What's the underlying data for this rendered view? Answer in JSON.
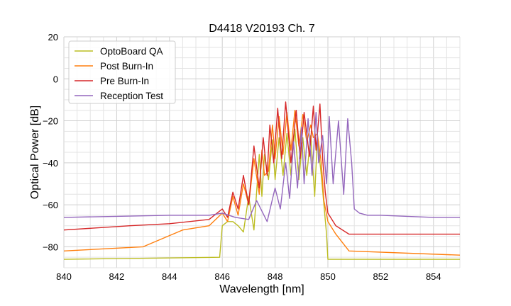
{
  "chart_data": {
    "type": "line",
    "title": "D4418 V20193 Ch. 7",
    "xlabel": "Wavelength [nm]",
    "ylabel": "Optical Power [dB]",
    "xlim": [
      840,
      855
    ],
    "ylim": [
      -90,
      20
    ],
    "x_ticks": [
      840,
      842,
      844,
      846,
      848,
      850,
      852,
      854
    ],
    "x_tick_labels": [
      "840",
      "842",
      "844",
      "846",
      "848",
      "850",
      "852",
      "854"
    ],
    "y_ticks": [
      20,
      0,
      -20,
      -40,
      -60,
      -80
    ],
    "y_tick_labels": [
      "20",
      "0",
      "−20",
      "−40",
      "−60",
      "−80"
    ],
    "grid": true,
    "legend_position": "top-left",
    "series": [
      {
        "name": "OptoBoard QA",
        "color": "#bcbd22",
        "x": [
          840,
          845.9,
          846.0,
          846.2,
          846.4,
          846.6,
          846.8,
          847.0,
          847.2,
          847.4,
          847.5,
          847.6,
          847.75,
          847.9,
          848.0,
          848.15,
          848.3,
          848.45,
          848.6,
          848.75,
          848.9,
          849.05,
          849.2,
          849.35,
          849.5,
          849.6,
          849.75,
          849.85,
          849.95,
          850.0,
          855
        ],
        "y": [
          -86,
          -85,
          -70,
          -68,
          -68,
          -70,
          -73,
          -56,
          -72,
          -36,
          -56,
          -36,
          -48,
          -29,
          -48,
          -28,
          -46,
          -26,
          -46,
          -24,
          -48,
          -28,
          -46,
          -27,
          -56,
          -28,
          -46,
          -60,
          -74,
          -86,
          -86
        ]
      },
      {
        "name": "Post Burn-In",
        "color": "#ff7f0e",
        "x": [
          840,
          843.0,
          844.5,
          845.5,
          846.0,
          846.2,
          846.4,
          846.6,
          846.8,
          847.0,
          847.2,
          847.4,
          847.5,
          847.6,
          847.75,
          847.9,
          848.0,
          848.15,
          848.3,
          848.45,
          848.6,
          848.75,
          848.9,
          849.05,
          849.2,
          849.35,
          849.45,
          849.6,
          849.75,
          849.85,
          850.0,
          850.3,
          850.8,
          855
        ],
        "y": [
          -82,
          -80,
          -72,
          -70,
          -64,
          -68,
          -56,
          -65,
          -50,
          -60,
          -38,
          -55,
          -34,
          -46,
          -44,
          -22,
          -38,
          -18,
          -36,
          -16,
          -34,
          -15,
          -32,
          -17,
          -30,
          -22,
          -28,
          -26,
          -40,
          -58,
          -68,
          -74,
          -82,
          -84
        ]
      },
      {
        "name": "Pre Burn-In",
        "color": "#d62728",
        "x": [
          840,
          842.5,
          844.0,
          845.5,
          846.0,
          846.2,
          846.4,
          846.6,
          846.8,
          847.0,
          847.2,
          847.4,
          847.55,
          847.7,
          847.8,
          847.95,
          848.1,
          848.25,
          848.4,
          848.6,
          848.8,
          848.95,
          849.1,
          849.3,
          849.45,
          849.55,
          849.7,
          849.8,
          849.9,
          850.0,
          850.3,
          850.8,
          855
        ],
        "y": [
          -72,
          -70,
          -69,
          -67,
          -62,
          -66,
          -54,
          -62,
          -46,
          -60,
          -32,
          -52,
          -28,
          -46,
          -22,
          -40,
          -14,
          -38,
          -11,
          -40,
          -15,
          -38,
          -16,
          -37,
          -13,
          -34,
          -12,
          -38,
          -54,
          -64,
          -70,
          -74,
          -74
        ]
      },
      {
        "name": "Reception Test",
        "color": "#9467bd",
        "x": [
          840,
          842,
          844,
          845.5,
          846.0,
          846.5,
          847.0,
          847.3,
          847.7,
          848.0,
          848.2,
          848.4,
          848.55,
          848.7,
          848.85,
          849.0,
          849.1,
          849.25,
          849.4,
          849.55,
          849.65,
          849.8,
          849.95,
          850.05,
          850.2,
          850.4,
          850.6,
          850.75,
          850.9,
          851.0,
          851.2,
          851.5,
          852,
          854,
          855
        ],
        "y": [
          -66,
          -65.5,
          -65,
          -65,
          -64,
          -66,
          -67,
          -58,
          -68,
          -52,
          -62,
          -40,
          -57,
          -30,
          -52,
          -23,
          -50,
          -19,
          -46,
          -16,
          -40,
          -27,
          -50,
          -18,
          -50,
          -20,
          -55,
          -19,
          -40,
          -62,
          -64,
          -65,
          -65,
          -66,
          -66
        ]
      }
    ]
  }
}
